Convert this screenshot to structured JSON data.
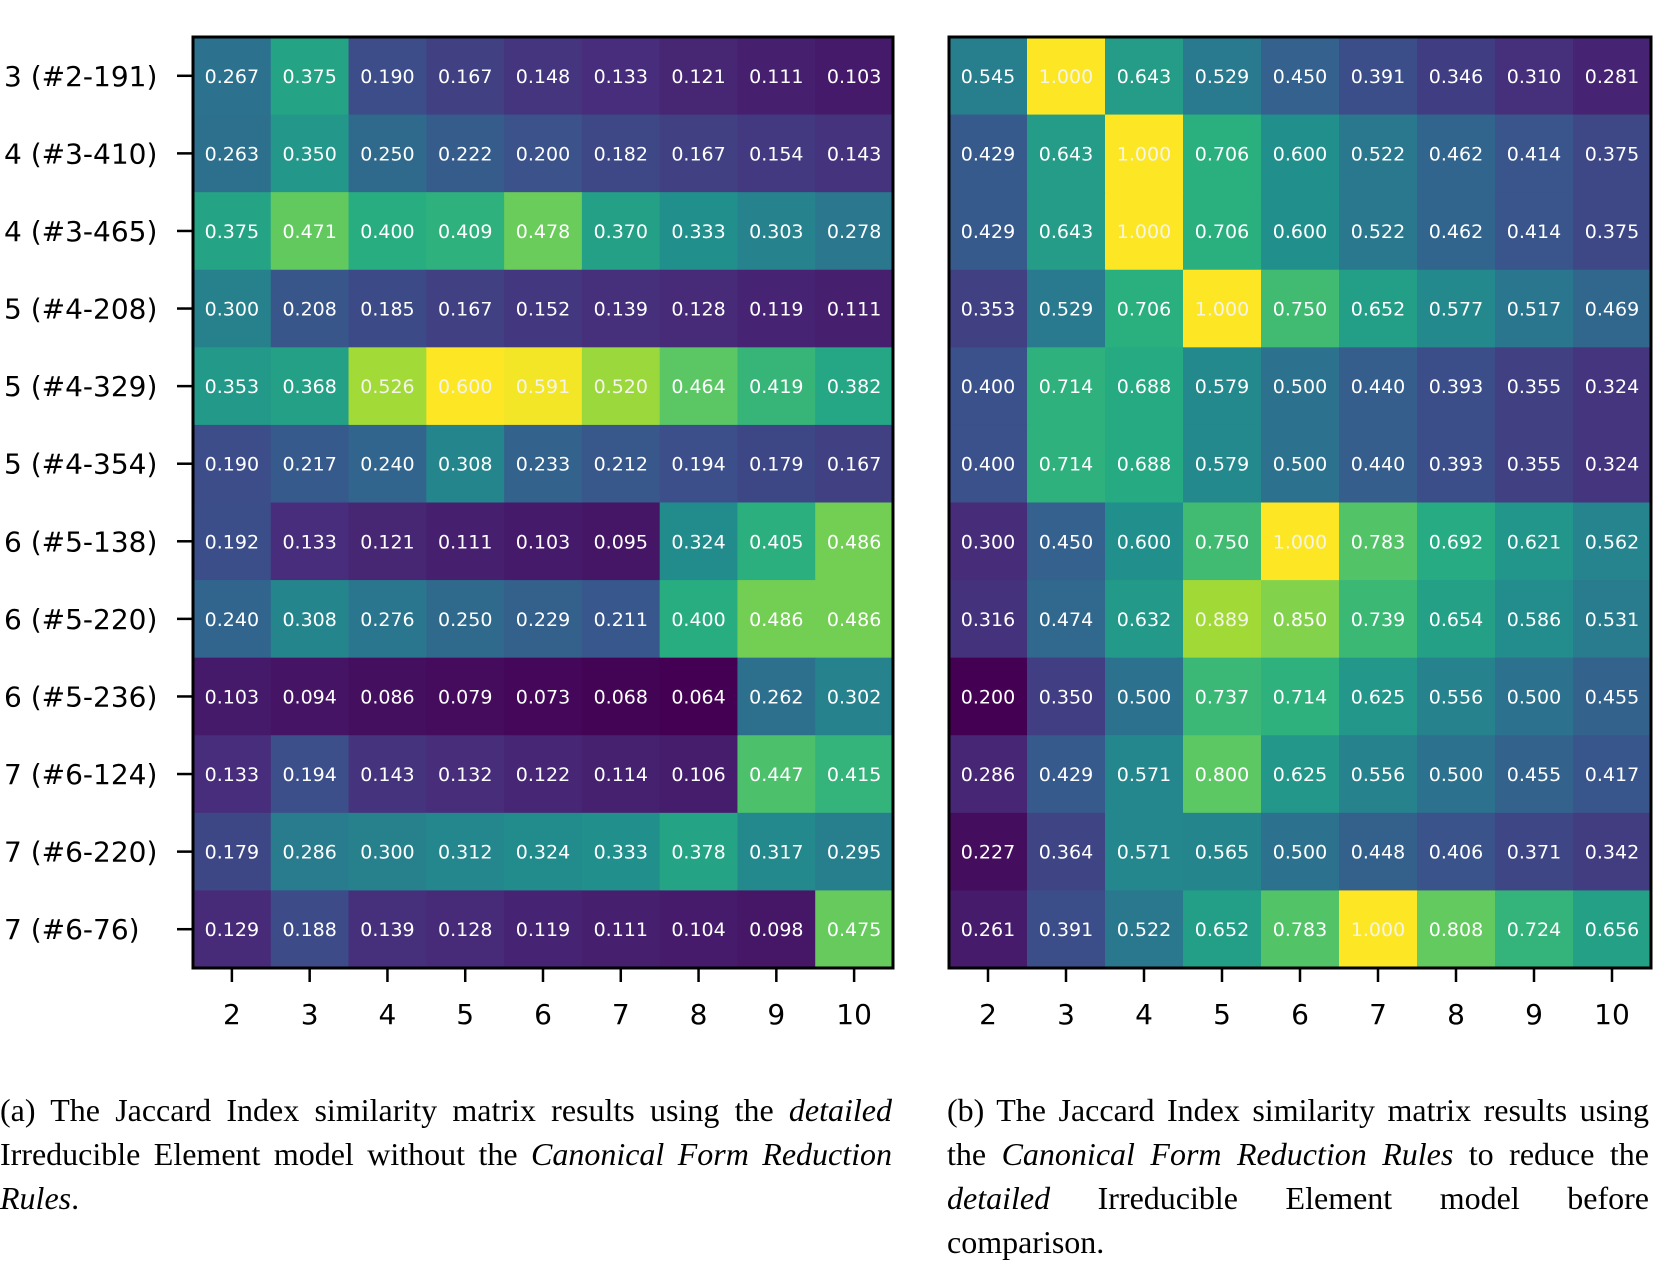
{
  "chart_data": [
    {
      "type": "heatmap",
      "colormap": "viridis",
      "value_range": [
        0.064,
        0.6
      ],
      "x_tick_labels": [
        "2",
        "3",
        "4",
        "5",
        "6",
        "7",
        "8",
        "9",
        "10"
      ],
      "y_tick_labels": [
        "3 (#2-191)",
        "4 (#3-410)",
        "4 (#3-465)",
        "5 (#4-208)",
        "5 (#4-329)",
        "5 (#4-354)",
        "6 (#5-138)",
        "6 (#5-220)",
        "6 (#5-236)",
        "7 (#6-124)",
        "7 (#6-220)",
        "7 (#6-76)"
      ],
      "values": [
        [
          "0.267",
          "0.375",
          "0.190",
          "0.167",
          "0.148",
          "0.133",
          "0.121",
          "0.111",
          "0.103"
        ],
        [
          "0.263",
          "0.350",
          "0.250",
          "0.222",
          "0.200",
          "0.182",
          "0.167",
          "0.154",
          "0.143"
        ],
        [
          "0.375",
          "0.471",
          "0.400",
          "0.409",
          "0.478",
          "0.370",
          "0.333",
          "0.303",
          "0.278"
        ],
        [
          "0.300",
          "0.208",
          "0.185",
          "0.167",
          "0.152",
          "0.139",
          "0.128",
          "0.119",
          "0.111"
        ],
        [
          "0.353",
          "0.368",
          "0.526",
          "0.600",
          "0.591",
          "0.520",
          "0.464",
          "0.419",
          "0.382"
        ],
        [
          "0.190",
          "0.217",
          "0.240",
          "0.308",
          "0.233",
          "0.212",
          "0.194",
          "0.179",
          "0.167"
        ],
        [
          "0.192",
          "0.133",
          "0.121",
          "0.111",
          "0.103",
          "0.095",
          "0.324",
          "0.405",
          "0.486"
        ],
        [
          "0.240",
          "0.308",
          "0.276",
          "0.250",
          "0.229",
          "0.211",
          "0.400",
          "0.486",
          "0.486"
        ],
        [
          "0.103",
          "0.094",
          "0.086",
          "0.079",
          "0.073",
          "0.068",
          "0.064",
          "0.262",
          "0.302"
        ],
        [
          "0.133",
          "0.194",
          "0.143",
          "0.132",
          "0.122",
          "0.114",
          "0.106",
          "0.447",
          "0.415"
        ],
        [
          "0.179",
          "0.286",
          "0.300",
          "0.312",
          "0.324",
          "0.333",
          "0.378",
          "0.317",
          "0.295"
        ],
        [
          "0.129",
          "0.188",
          "0.139",
          "0.128",
          "0.119",
          "0.111",
          "0.104",
          "0.098",
          "0.475"
        ]
      ]
    },
    {
      "type": "heatmap",
      "colormap": "viridis",
      "value_range": [
        0.2,
        1.0
      ],
      "x_tick_labels": [
        "2",
        "3",
        "4",
        "5",
        "6",
        "7",
        "8",
        "9",
        "10"
      ],
      "values": [
        [
          "0.545",
          "1.000",
          "0.643",
          "0.529",
          "0.450",
          "0.391",
          "0.346",
          "0.310",
          "0.281"
        ],
        [
          "0.429",
          "0.643",
          "1.000",
          "0.706",
          "0.600",
          "0.522",
          "0.462",
          "0.414",
          "0.375"
        ],
        [
          "0.429",
          "0.643",
          "1.000",
          "0.706",
          "0.600",
          "0.522",
          "0.462",
          "0.414",
          "0.375"
        ],
        [
          "0.353",
          "0.529",
          "0.706",
          "1.000",
          "0.750",
          "0.652",
          "0.577",
          "0.517",
          "0.469"
        ],
        [
          "0.400",
          "0.714",
          "0.688",
          "0.579",
          "0.500",
          "0.440",
          "0.393",
          "0.355",
          "0.324"
        ],
        [
          "0.400",
          "0.714",
          "0.688",
          "0.579",
          "0.500",
          "0.440",
          "0.393",
          "0.355",
          "0.324"
        ],
        [
          "0.300",
          "0.450",
          "0.600",
          "0.750",
          "1.000",
          "0.783",
          "0.692",
          "0.621",
          "0.562"
        ],
        [
          "0.316",
          "0.474",
          "0.632",
          "0.889",
          "0.850",
          "0.739",
          "0.654",
          "0.586",
          "0.531"
        ],
        [
          "0.200",
          "0.350",
          "0.500",
          "0.737",
          "0.714",
          "0.625",
          "0.556",
          "0.500",
          "0.455"
        ],
        [
          "0.286",
          "0.429",
          "0.571",
          "0.800",
          "0.625",
          "0.556",
          "0.500",
          "0.455",
          "0.417"
        ],
        [
          "0.227",
          "0.364",
          "0.571",
          "0.565",
          "0.500",
          "0.448",
          "0.406",
          "0.371",
          "0.342"
        ],
        [
          "0.261",
          "0.391",
          "0.522",
          "0.652",
          "0.783",
          "1.000",
          "0.808",
          "0.724",
          "0.656"
        ]
      ]
    }
  ],
  "captions": {
    "a": {
      "prefix": "(a) The Jaccard Index similarity matrix results using the ",
      "em1": "detailed",
      "mid": " Irreducible Element model without the ",
      "em2": "Canonical Form Reduction Rules",
      "suffix": "."
    },
    "b": {
      "prefix": "(b) The Jaccard Index similarity matrix results using the ",
      "em1": "Canonical Form Reduction Rules",
      "mid": " to reduce the ",
      "em2": "detailed",
      "suffix": " Irreducible Element model before comparison."
    }
  }
}
